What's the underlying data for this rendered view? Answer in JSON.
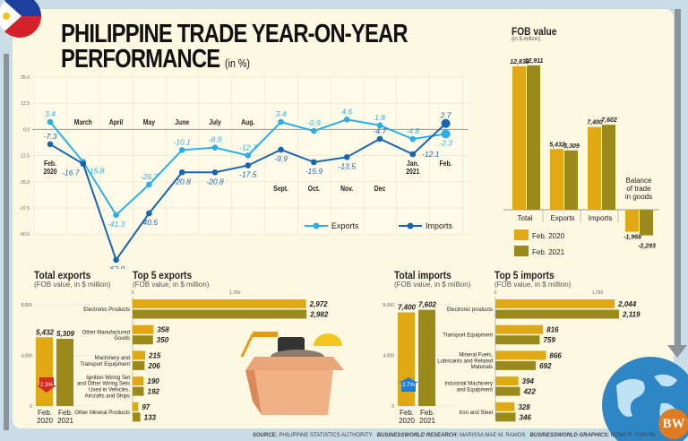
{
  "header": {
    "title_line1": "PHILIPPINE TRADE YEAR-ON-YEAR",
    "title_line2": "PERFORMANCE",
    "unit": "(in %)"
  },
  "colors": {
    "exports": "#29aee8",
    "imports": "#1565b0",
    "feb2020": "#e0a812",
    "feb2021": "#9a8a1c",
    "background": "#fdf8e2",
    "frame": "#c9dde6"
  },
  "icons": [
    "philippine-flag-icon",
    "globe-icon",
    "businessworld-logo",
    "cardboard-box-illustration",
    "down-arrow-icon",
    "up-arrow-icon"
  ],
  "logo_text": "BW",
  "chart_data": [
    {
      "type": "line",
      "x": [
        "Feb. 2020",
        "March",
        "April",
        "May",
        "June",
        "July",
        "Aug.",
        "Sept.",
        "Oct.",
        "Nov.",
        "Dec",
        "Jan. 2021",
        "Feb."
      ],
      "yticks": [
        "25.0",
        "12.5",
        "0.0",
        "-12.5",
        "-25.0",
        "-37.5",
        "-50.0"
      ],
      "ylim": [
        -62.9,
        25
      ],
      "grid": true,
      "legend": "bottom-right",
      "series": [
        {
          "name": "Exports",
          "values": [
            3.4,
            -15.8,
            -41.3,
            -26.7,
            -10.1,
            -8.9,
            -12.7,
            3.4,
            -0.9,
            4.6,
            1.8,
            -4.8,
            -2.3
          ],
          "labels": [
            "3.4",
            "-15.8",
            "-41.3",
            "-26.7",
            "-10.1",
            "-8.9",
            "-12.7",
            "3.4",
            "-0.9",
            "4.6",
            "1.8",
            "-4.8",
            "-2.3"
          ]
        },
        {
          "name": "Imports",
          "values": [
            -7.3,
            -16.7,
            -62.9,
            -40.5,
            -20.8,
            -20.8,
            -17.5,
            -9.9,
            -15.9,
            -13.5,
            -4.7,
            -12.1,
            2.7
          ],
          "labels": [
            "-7.3",
            "-16.7",
            "-62.9",
            "-40.5",
            "-20.8",
            "-20.8",
            "-17.5",
            "-9.9",
            "-15.9",
            "-13.5",
            "-4.7",
            "-12.1",
            "2.7"
          ]
        }
      ]
    },
    {
      "type": "bar",
      "title": "FOB value",
      "subtitle": "(in $ million)",
      "categories": [
        "Total",
        "Exports",
        "Imports",
        "Balance of trade in goods"
      ],
      "legend": "bottom-left",
      "series": [
        {
          "name": "Feb. 2020",
          "values": [
            12833,
            5432,
            7400,
            -1968
          ],
          "labels": [
            "12,833",
            "5,432",
            "7,400",
            "-1,968"
          ]
        },
        {
          "name": "Feb. 2021",
          "values": [
            12911,
            5309,
            7602,
            -2293
          ],
          "labels": [
            "12,911",
            "5,309",
            "7,602",
            "-2,293"
          ]
        }
      ]
    },
    {
      "type": "bar",
      "title": "Total exports",
      "subtitle": "(FOB value, in $ million)",
      "yticks": [
        "8,000",
        "4,000",
        "0"
      ],
      "ylim": [
        0,
        8000
      ],
      "categories": [
        "Feb. 2020",
        "Feb. 2021"
      ],
      "values": [
        5432,
        5309
      ],
      "labels": [
        "5,432",
        "5,309"
      ],
      "change": "2.3%",
      "change_direction": "down"
    },
    {
      "type": "bar",
      "orientation": "horizontal",
      "title": "Top 5 exports",
      "subtitle": "(FOB value, in $ million)",
      "xticks": [
        "0",
        "1,750"
      ],
      "categories": [
        "Electronic Products",
        "Other Manufactured Goods",
        "Machinery and Transport Equipment",
        "Ignition Wiring Set and Other Wiring Sets Used in Vehicles, Aircrafts and Ships",
        "Other Mineral Products"
      ],
      "series": [
        {
          "name": "Feb. 2020",
          "values": [
            2972,
            358,
            215,
            190,
            97
          ],
          "labels": [
            "2,972",
            "358",
            "215",
            "190",
            "97"
          ]
        },
        {
          "name": "Feb. 2021",
          "values": [
            2982,
            350,
            206,
            192,
            133
          ],
          "labels": [
            "2,982",
            "350",
            "206",
            "192",
            "133"
          ]
        }
      ]
    },
    {
      "type": "bar",
      "title": "Total imports",
      "subtitle": "(FOB value, in $ million)",
      "yticks": [
        "8,000",
        "4,000",
        "0"
      ],
      "ylim": [
        0,
        8000
      ],
      "categories": [
        "Feb. 2020",
        "Feb. 2021"
      ],
      "values": [
        7400,
        7602
      ],
      "labels": [
        "7,400",
        "7,602"
      ],
      "change": "2.7%",
      "change_direction": "up"
    },
    {
      "type": "bar",
      "orientation": "horizontal",
      "title": "Top 5 imports",
      "subtitle": "(FOB value, in $ million)",
      "xticks": [
        "0",
        "1,750"
      ],
      "categories": [
        "Electronic products",
        "Transport Equipment",
        "Mineral Fuels, Lubricants and Related Materials",
        "Industrial Machinery and Equipment",
        "Iron and Steel"
      ],
      "series": [
        {
          "name": "Feb. 2020",
          "values": [
            2044,
            816,
            866,
            394,
            328
          ],
          "labels": [
            "2,044",
            "816",
            "866",
            "394",
            "328"
          ]
        },
        {
          "name": "Feb. 2021",
          "values": [
            2119,
            759,
            692,
            422,
            346
          ],
          "labels": [
            "2,119",
            "759",
            "692",
            "422",
            "346"
          ]
        }
      ]
    }
  ],
  "footer": {
    "source_label": "SOURCE:",
    "source": "PHILIPPINE STATISTICS AUTHORITY",
    "research_label": "BUSINESSWORLD RESEARCH:",
    "research": "MARISSA MAE M. RAMOS",
    "graphics_label": "BUSINESSWORLD GRAPHICS:",
    "graphics": "BONG R. FORTIN"
  }
}
